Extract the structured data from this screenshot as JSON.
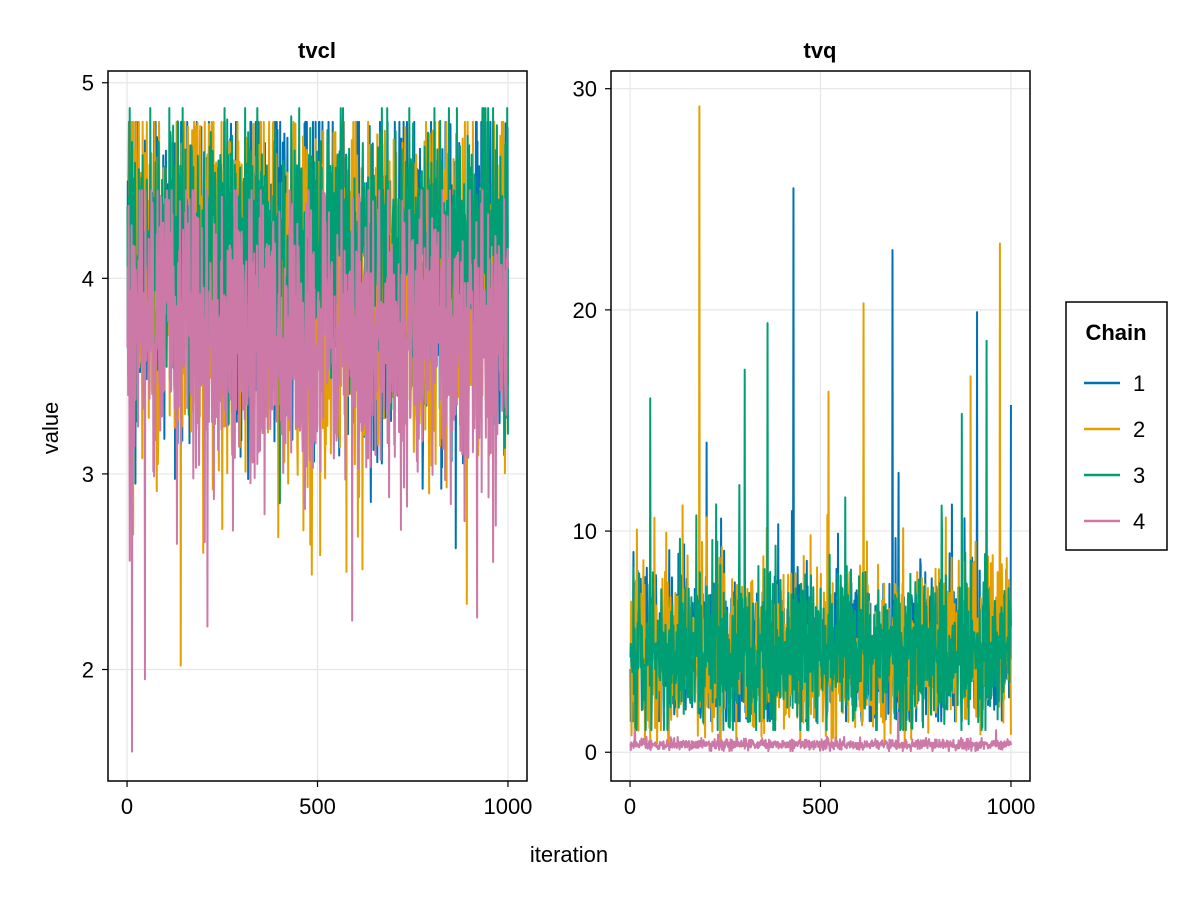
{
  "chart_data": {
    "type": "line",
    "xlabel": "iteration",
    "ylabel": "value",
    "legend": {
      "title": "Chain",
      "placement": "right",
      "entries": [
        {
          "name": "1",
          "color": "#0072b2"
        },
        {
          "name": "2",
          "color": "#e69f00"
        },
        {
          "name": "3",
          "color": "#009e73"
        },
        {
          "name": "4",
          "color": "#cc79a7"
        }
      ]
    },
    "panels": [
      {
        "title": "tvcl",
        "xlim": [
          -50,
          1050
        ],
        "ylim": [
          1.43,
          5.06
        ],
        "xticks": [
          0,
          500,
          1000
        ],
        "xtick_labels": [
          "0",
          "500",
          "1000"
        ],
        "yticks": [
          2,
          3,
          4,
          5
        ],
        "ytick_labels": [
          "2",
          "3",
          "4",
          "5"
        ],
        "n_iterations": 1000,
        "series": [
          {
            "name": "1",
            "color": "#0072b2",
            "baseline": 4.05,
            "spread": 0.42,
            "min": 2.6,
            "max": 4.8,
            "spikes": [
              {
                "x": 165,
                "y": 4.68
              },
              {
                "x": 272,
                "y": 4.79
              },
              {
                "x": 543,
                "y": 4.66
              },
              {
                "x": 862,
                "y": 2.62
              },
              {
                "x": 998,
                "y": 4.77
              }
            ]
          },
          {
            "name": "2",
            "color": "#e69f00",
            "baseline": 4.0,
            "spread": 0.48,
            "min": 2.0,
            "max": 4.8,
            "spikes": [
              {
                "x": 140,
                "y": 2.02
              },
              {
                "x": 203,
                "y": 4.8
              },
              {
                "x": 575,
                "y": 2.5
              },
              {
                "x": 686,
                "y": 4.6
              },
              {
                "x": 1000,
                "y": 3.45
              }
            ]
          },
          {
            "name": "3",
            "color": "#009e73",
            "baseline": 4.15,
            "spread": 0.34,
            "min": 2.85,
            "max": 4.87,
            "spikes": [
              {
                "x": 8,
                "y": 4.53
              },
              {
                "x": 40,
                "y": 4.63
              },
              {
                "x": 400,
                "y": 2.85
              },
              {
                "x": 720,
                "y": 4.66
              },
              {
                "x": 960,
                "y": 4.87
              }
            ]
          },
          {
            "name": "4",
            "color": "#cc79a7",
            "baseline": 3.72,
            "spread": 0.38,
            "min": 1.58,
            "max": 4.45,
            "spikes": [
              {
                "x": 12,
                "y": 1.58
              },
              {
                "x": 46,
                "y": 1.95
              },
              {
                "x": 210,
                "y": 2.22
              },
              {
                "x": 590,
                "y": 2.25
              },
              {
                "x": 960,
                "y": 2.55
              }
            ]
          }
        ]
      },
      {
        "title": "tvq",
        "xlim": [
          -50,
          1050
        ],
        "ylim": [
          -1.3,
          30.8
        ],
        "xticks": [
          0,
          500,
          1000
        ],
        "xtick_labels": [
          "0",
          "500",
          "1000"
        ],
        "yticks": [
          0,
          10,
          20,
          30
        ],
        "ytick_labels": [
          "0",
          "10",
          "20",
          "30"
        ],
        "n_iterations": 1000,
        "series": [
          {
            "name": "1",
            "color": "#0072b2",
            "baseline": 4.6,
            "spread": 1.8,
            "min": 1.4,
            "max": 25.5,
            "spikes": [
              {
                "x": 428,
                "y": 25.5
              },
              {
                "x": 688,
                "y": 22.7
              },
              {
                "x": 910,
                "y": 19.9
              },
              {
                "x": 200,
                "y": 14.0
              },
              {
                "x": 1000,
                "y": 15.7
              }
            ]
          },
          {
            "name": "2",
            "color": "#e69f00",
            "baseline": 4.4,
            "spread": 1.9,
            "min": 0.4,
            "max": 29.2,
            "spikes": [
              {
                "x": 181,
                "y": 29.2
              },
              {
                "x": 970,
                "y": 23.0
              },
              {
                "x": 612,
                "y": 20.3
              },
              {
                "x": 893,
                "y": 17.0
              },
              {
                "x": 520,
                "y": 16.3
              }
            ]
          },
          {
            "name": "3",
            "color": "#009e73",
            "baseline": 4.5,
            "spread": 1.7,
            "min": 1.0,
            "max": 19.4,
            "spikes": [
              {
                "x": 360,
                "y": 19.4
              },
              {
                "x": 300,
                "y": 17.3
              },
              {
                "x": 52,
                "y": 16.0
              },
              {
                "x": 935,
                "y": 18.6
              },
              {
                "x": 870,
                "y": 15.3
              }
            ]
          },
          {
            "name": "4",
            "color": "#cc79a7",
            "baseline": 0.35,
            "spread": 0.12,
            "min": 0.05,
            "max": 1.8,
            "spikes": [
              {
                "x": 703,
                "y": 1.8
              },
              {
                "x": 12,
                "y": 1.0
              },
              {
                "x": 960,
                "y": 1.0
              },
              {
                "x": 230,
                "y": 0.8
              }
            ]
          }
        ]
      }
    ]
  }
}
